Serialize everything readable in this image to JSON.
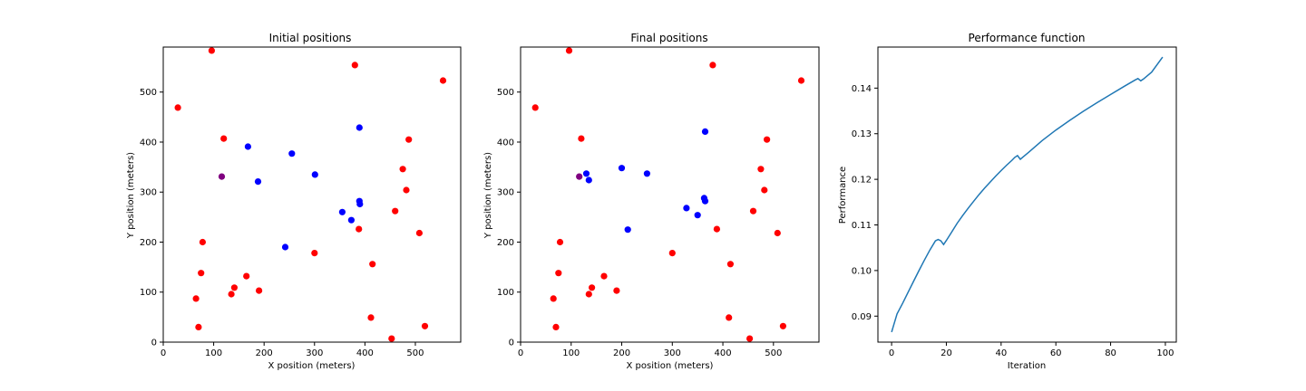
{
  "chart_data": [
    {
      "type": "scatter",
      "title": "Initial positions",
      "xlabel": "X position (meters)",
      "ylabel": "Y position (meters)",
      "xlim": [
        0,
        590
      ],
      "ylim": [
        0,
        590
      ],
      "xticks": [
        0,
        100,
        200,
        300,
        400,
        500
      ],
      "yticks": [
        0,
        100,
        200,
        300,
        400,
        500
      ],
      "xtick_labels": [
        "0",
        "100",
        "200",
        "300",
        "400",
        "500"
      ],
      "ytick_labels": [
        "0",
        "100",
        "200",
        "300",
        "400",
        "500"
      ],
      "grid": false,
      "series": [
        {
          "color": "#ff0000",
          "points": [
            [
              96,
              583
            ],
            [
              380,
              554
            ],
            [
              555,
              523
            ],
            [
              29,
              469
            ],
            [
              120,
              407
            ],
            [
              487,
              405
            ],
            [
              475,
              346
            ],
            [
              482,
              304
            ],
            [
              460,
              262
            ],
            [
              388,
              226
            ],
            [
              508,
              218
            ],
            [
              78,
              200
            ],
            [
              300,
              178
            ],
            [
              415,
              156
            ],
            [
              75,
              138
            ],
            [
              165,
              132
            ],
            [
              141,
              109
            ],
            [
              190,
              103
            ],
            [
              135,
              96
            ],
            [
              65,
              87
            ],
            [
              412,
              49
            ],
            [
              70,
              30
            ],
            [
              519,
              32
            ],
            [
              453,
              7
            ]
          ]
        },
        {
          "color": "#0000ff",
          "points": [
            [
              389,
              429
            ],
            [
              168,
              391
            ],
            [
              255,
              377
            ],
            [
              301,
              335
            ],
            [
              188,
              321
            ],
            [
              389,
              282
            ],
            [
              390,
              276
            ],
            [
              355,
              260
            ],
            [
              373,
              244
            ],
            [
              242,
              190
            ]
          ]
        },
        {
          "color": "#800080",
          "points": [
            [
              116,
              331
            ]
          ]
        }
      ]
    },
    {
      "type": "scatter",
      "title": "Final positions",
      "xlabel": "X position (meters)",
      "ylabel": "Y position (meters)",
      "xlim": [
        0,
        590
      ],
      "ylim": [
        0,
        590
      ],
      "xticks": [
        0,
        100,
        200,
        300,
        400,
        500
      ],
      "yticks": [
        0,
        100,
        200,
        300,
        400,
        500
      ],
      "xtick_labels": [
        "0",
        "100",
        "200",
        "300",
        "400",
        "500"
      ],
      "ytick_labels": [
        "0",
        "100",
        "200",
        "300",
        "400",
        "500"
      ],
      "grid": false,
      "series": [
        {
          "color": "#ff0000",
          "points": [
            [
              96,
              583
            ],
            [
              380,
              554
            ],
            [
              555,
              523
            ],
            [
              29,
              469
            ],
            [
              120,
              407
            ],
            [
              487,
              405
            ],
            [
              475,
              346
            ],
            [
              482,
              304
            ],
            [
              460,
              262
            ],
            [
              388,
              226
            ],
            [
              508,
              218
            ],
            [
              78,
              200
            ],
            [
              300,
              178
            ],
            [
              415,
              156
            ],
            [
              75,
              138
            ],
            [
              165,
              132
            ],
            [
              141,
              109
            ],
            [
              190,
              103
            ],
            [
              135,
              96
            ],
            [
              65,
              87
            ],
            [
              412,
              49
            ],
            [
              70,
              30
            ],
            [
              519,
              32
            ],
            [
              453,
              7
            ]
          ]
        },
        {
          "color": "#0000ff",
          "points": [
            [
              365,
              421
            ],
            [
              200,
              348
            ],
            [
              250,
              337
            ],
            [
              130,
              337
            ],
            [
              135,
              324
            ],
            [
              363,
              288
            ],
            [
              365,
              282
            ],
            [
              328,
              268
            ],
            [
              350,
              254
            ],
            [
              212,
              225
            ]
          ]
        },
        {
          "color": "#800080",
          "points": [
            [
              116,
              331
            ]
          ]
        }
      ]
    },
    {
      "type": "line",
      "title": "Performance function",
      "xlabel": "Iteration",
      "ylabel": "Performance",
      "xlim": [
        -5,
        104
      ],
      "ylim": [
        0.0843,
        0.149
      ],
      "xticks": [
        0,
        20,
        40,
        60,
        80,
        100
      ],
      "yticks": [
        0.09,
        0.1,
        0.11,
        0.12,
        0.13,
        0.14
      ],
      "xtick_labels": [
        "0",
        "20",
        "40",
        "60",
        "80",
        "100"
      ],
      "ytick_labels": [
        "0.09",
        "0.10",
        "0.11",
        "0.12",
        "0.13",
        "0.14"
      ],
      "grid": false,
      "series": [
        {
          "color": "#1f77b4",
          "points": [
            [
              0,
              0.0865
            ],
            [
              1,
              0.0885
            ],
            [
              2,
              0.0905
            ],
            [
              4,
              0.0928
            ],
            [
              6,
              0.0952
            ],
            [
              8,
              0.0976
            ],
            [
              10,
              0.1
            ],
            [
              12,
              0.1023
            ],
            [
              14,
              0.1045
            ],
            [
              16,
              0.1065
            ],
            [
              17,
              0.1068
            ],
            [
              18,
              0.1065
            ],
            [
              19,
              0.1057
            ],
            [
              20,
              0.1066
            ],
            [
              22,
              0.1085
            ],
            [
              24,
              0.1104
            ],
            [
              26,
              0.1121
            ],
            [
              28,
              0.1137
            ],
            [
              30,
              0.1152
            ],
            [
              32,
              0.1167
            ],
            [
              34,
              0.1181
            ],
            [
              36,
              0.1194
            ],
            [
              38,
              0.1207
            ],
            [
              40,
              0.1219
            ],
            [
              42,
              0.1231
            ],
            [
              44,
              0.1242
            ],
            [
              45,
              0.1248
            ],
            [
              46,
              0.1252
            ],
            [
              47,
              0.1244
            ],
            [
              48,
              0.1249
            ],
            [
              50,
              0.1259
            ],
            [
              55,
              0.1285
            ],
            [
              60,
              0.1308
            ],
            [
              65,
              0.1329
            ],
            [
              70,
              0.1349
            ],
            [
              75,
              0.1368
            ],
            [
              80,
              0.1386
            ],
            [
              85,
              0.1404
            ],
            [
              89,
              0.1418
            ],
            [
              90,
              0.1421
            ],
            [
              91,
              0.1416
            ],
            [
              92,
              0.142
            ],
            [
              95,
              0.1435
            ],
            [
              99,
              0.1468
            ]
          ]
        }
      ]
    }
  ]
}
